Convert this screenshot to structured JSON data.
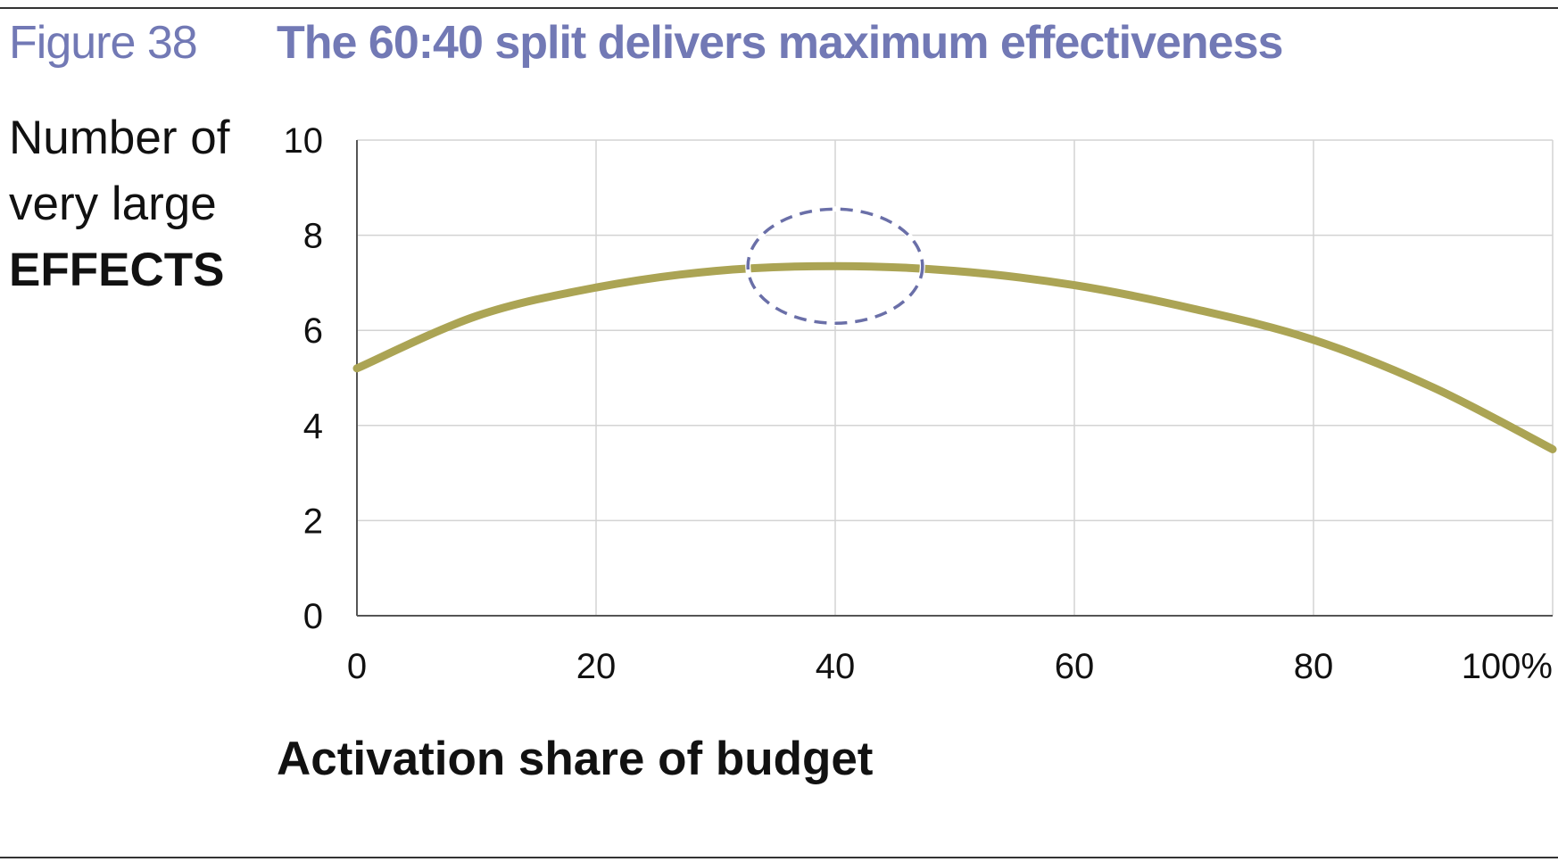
{
  "figure": {
    "label": "Figure 38",
    "title": "The 60:40 split delivers maximum effectiveness"
  },
  "chart_data": {
    "type": "line",
    "title": "The 60:40 split delivers maximum effectiveness",
    "xlabel": "Activation share of budget",
    "ylabel_lines": [
      "Number of",
      "very large",
      "EFFECTS"
    ],
    "x": [
      0,
      10,
      20,
      30,
      40,
      50,
      60,
      70,
      80,
      90,
      100
    ],
    "series": [
      {
        "name": "Number of very large effects",
        "values": [
          5.2,
          6.3,
          6.9,
          7.25,
          7.35,
          7.25,
          6.95,
          6.45,
          5.8,
          4.8,
          3.5
        ]
      }
    ],
    "xlim": [
      0,
      100
    ],
    "ylim": [
      0,
      10
    ],
    "x_ticks": [
      0,
      20,
      40,
      60,
      80,
      100
    ],
    "x_tick_labels": [
      "0",
      "20",
      "40",
      "60",
      "80",
      "100%"
    ],
    "y_ticks": [
      0,
      2,
      4,
      6,
      8,
      10
    ],
    "y_tick_labels": [
      "0",
      "2",
      "4",
      "6",
      "8",
      "10"
    ],
    "grid": true,
    "highlight": {
      "shape": "dashed-ellipse",
      "x_center": 40,
      "y_center": 7.35,
      "x_half_width": 7.3,
      "y_half_height": 1.2
    },
    "colors": {
      "line": "#aba454",
      "highlight": "#6a6fa8",
      "grid": "#d3d3d3",
      "axis": "#555555",
      "title": "#7279b5"
    }
  }
}
